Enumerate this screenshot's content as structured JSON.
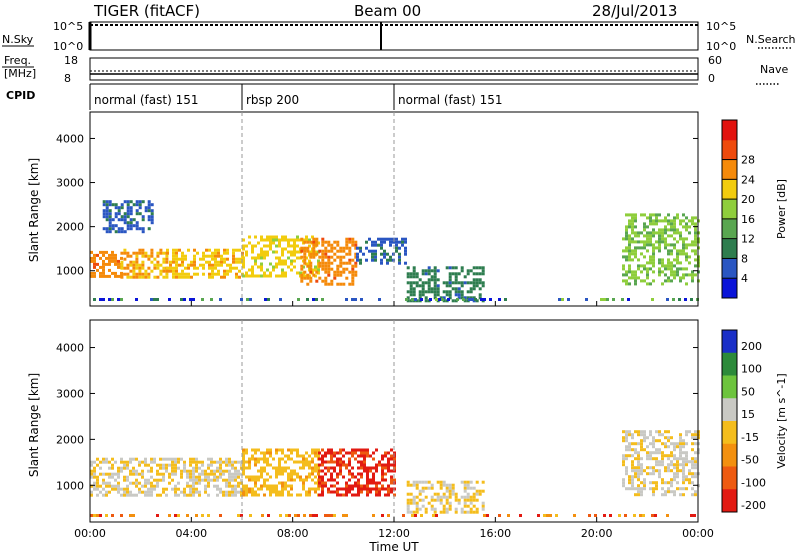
{
  "header": {
    "station": "TIGER (fitACF)",
    "beam": "Beam 00",
    "date": "28/Jul/2013"
  },
  "panels": {
    "nsky_label": "N.Sky",
    "nsearch_label": "N.Search",
    "nsky_ticks": [
      "10^5",
      "10^0"
    ],
    "nsearch_ticks": [
      "10^5",
      "10^0"
    ],
    "freq_label_1": "Freq.",
    "freq_label_2": "[MHz]",
    "freq_ticks": [
      "18",
      "8"
    ],
    "nave_label": "Nave",
    "nave_ticks": [
      "60",
      "0"
    ],
    "cpid_label": "CPID",
    "cpid_segments": [
      {
        "label": "normal (fast) 151",
        "start_hour": 0,
        "end_hour": 6
      },
      {
        "label": "rbsp 200",
        "start_hour": 6,
        "end_hour": 12
      },
      {
        "label": "normal (fast) 151",
        "start_hour": 12,
        "end_hour": 24
      }
    ]
  },
  "axes": {
    "ylabel": "Slant Range [km]",
    "xlabel": "Time UT",
    "yticks": [
      1000,
      2000,
      3000,
      4000
    ],
    "xticks": [
      "00:00",
      "04:00",
      "08:00",
      "12:00",
      "16:00",
      "20:00",
      "00:00"
    ]
  },
  "colorbars": {
    "power": {
      "label": "Power [dB]",
      "ticks": [
        "4",
        "8",
        "12",
        "16",
        "20",
        "24",
        "28"
      ],
      "colors": [
        "#0a14d8",
        "#2a56c2",
        "#2e7d4f",
        "#59a650",
        "#8fce3c",
        "#f2cc0e",
        "#f58a0a",
        "#ee4a0c",
        "#e2120e"
      ]
    },
    "velocity": {
      "label": "Velocity [m s^-1]",
      "ticks": [
        "200",
        "100",
        "50",
        "15",
        "-15",
        "-50",
        "-100",
        "-200"
      ],
      "colors": [
        "#1a2fc7",
        "#2c8a3a",
        "#6dc43d",
        "#c9c9c4",
        "#f4bd1d",
        "#f3900f",
        "#ee5a10",
        "#e21a12"
      ]
    }
  },
  "chart_data": {
    "type": "heatmap",
    "title": "TIGER (fitACF)",
    "subtitle": "Beam 00",
    "date": "28/Jul/2013",
    "xlabel": "Time UT",
    "ylabel": "Slant Range [km]",
    "xlim_hours": [
      0,
      24
    ],
    "ylim_km": [
      200,
      4600
    ],
    "series": [
      {
        "name": "Power [dB]",
        "scale": [
          0,
          30
        ],
        "regions": [
          {
            "t": [
              0.0,
              1.2
            ],
            "r": [
              900,
              1450
            ],
            "v": 22
          },
          {
            "t": [
              1.2,
              3.0
            ],
            "r": [
              850,
              1500
            ],
            "v": 20
          },
          {
            "t": [
              3.0,
              6.0
            ],
            "r": [
              850,
              1500
            ],
            "v": 19
          },
          {
            "t": [
              0.5,
              2.5
            ],
            "r": [
              1900,
              2600
            ],
            "v": 6
          },
          {
            "t": [
              6.0,
              9.0
            ],
            "r": [
              900,
              1800
            ],
            "v": 18
          },
          {
            "t": [
              8.3,
              10.5
            ],
            "r": [
              700,
              1750
            ],
            "v": 22
          },
          {
            "t": [
              10.5,
              12.5
            ],
            "r": [
              1200,
              1750
            ],
            "v": 6
          },
          {
            "t": [
              12.5,
              15.5
            ],
            "r": [
              300,
              1100
            ],
            "v": 8
          },
          {
            "t": [
              21.0,
              24.0
            ],
            "r": [
              700,
              2300
            ],
            "v": 14
          }
        ]
      },
      {
        "name": "Velocity [m s^-1]",
        "scale": [
          -250,
          250
        ],
        "regions": [
          {
            "t": [
              0.0,
              6.0
            ],
            "r": [
              800,
              1600
            ],
            "v": 0
          },
          {
            "t": [
              6.0,
              9.0
            ],
            "r": [
              800,
              1800
            ],
            "v": -40
          },
          {
            "t": [
              9.0,
              12.0
            ],
            "r": [
              800,
              1800
            ],
            "v": -200
          },
          {
            "t": [
              12.5,
              15.5
            ],
            "r": [
              400,
              1100
            ],
            "v": 0
          },
          {
            "t": [
              21.0,
              24.0
            ],
            "r": [
              800,
              2200
            ],
            "v": 10
          }
        ]
      }
    ]
  }
}
